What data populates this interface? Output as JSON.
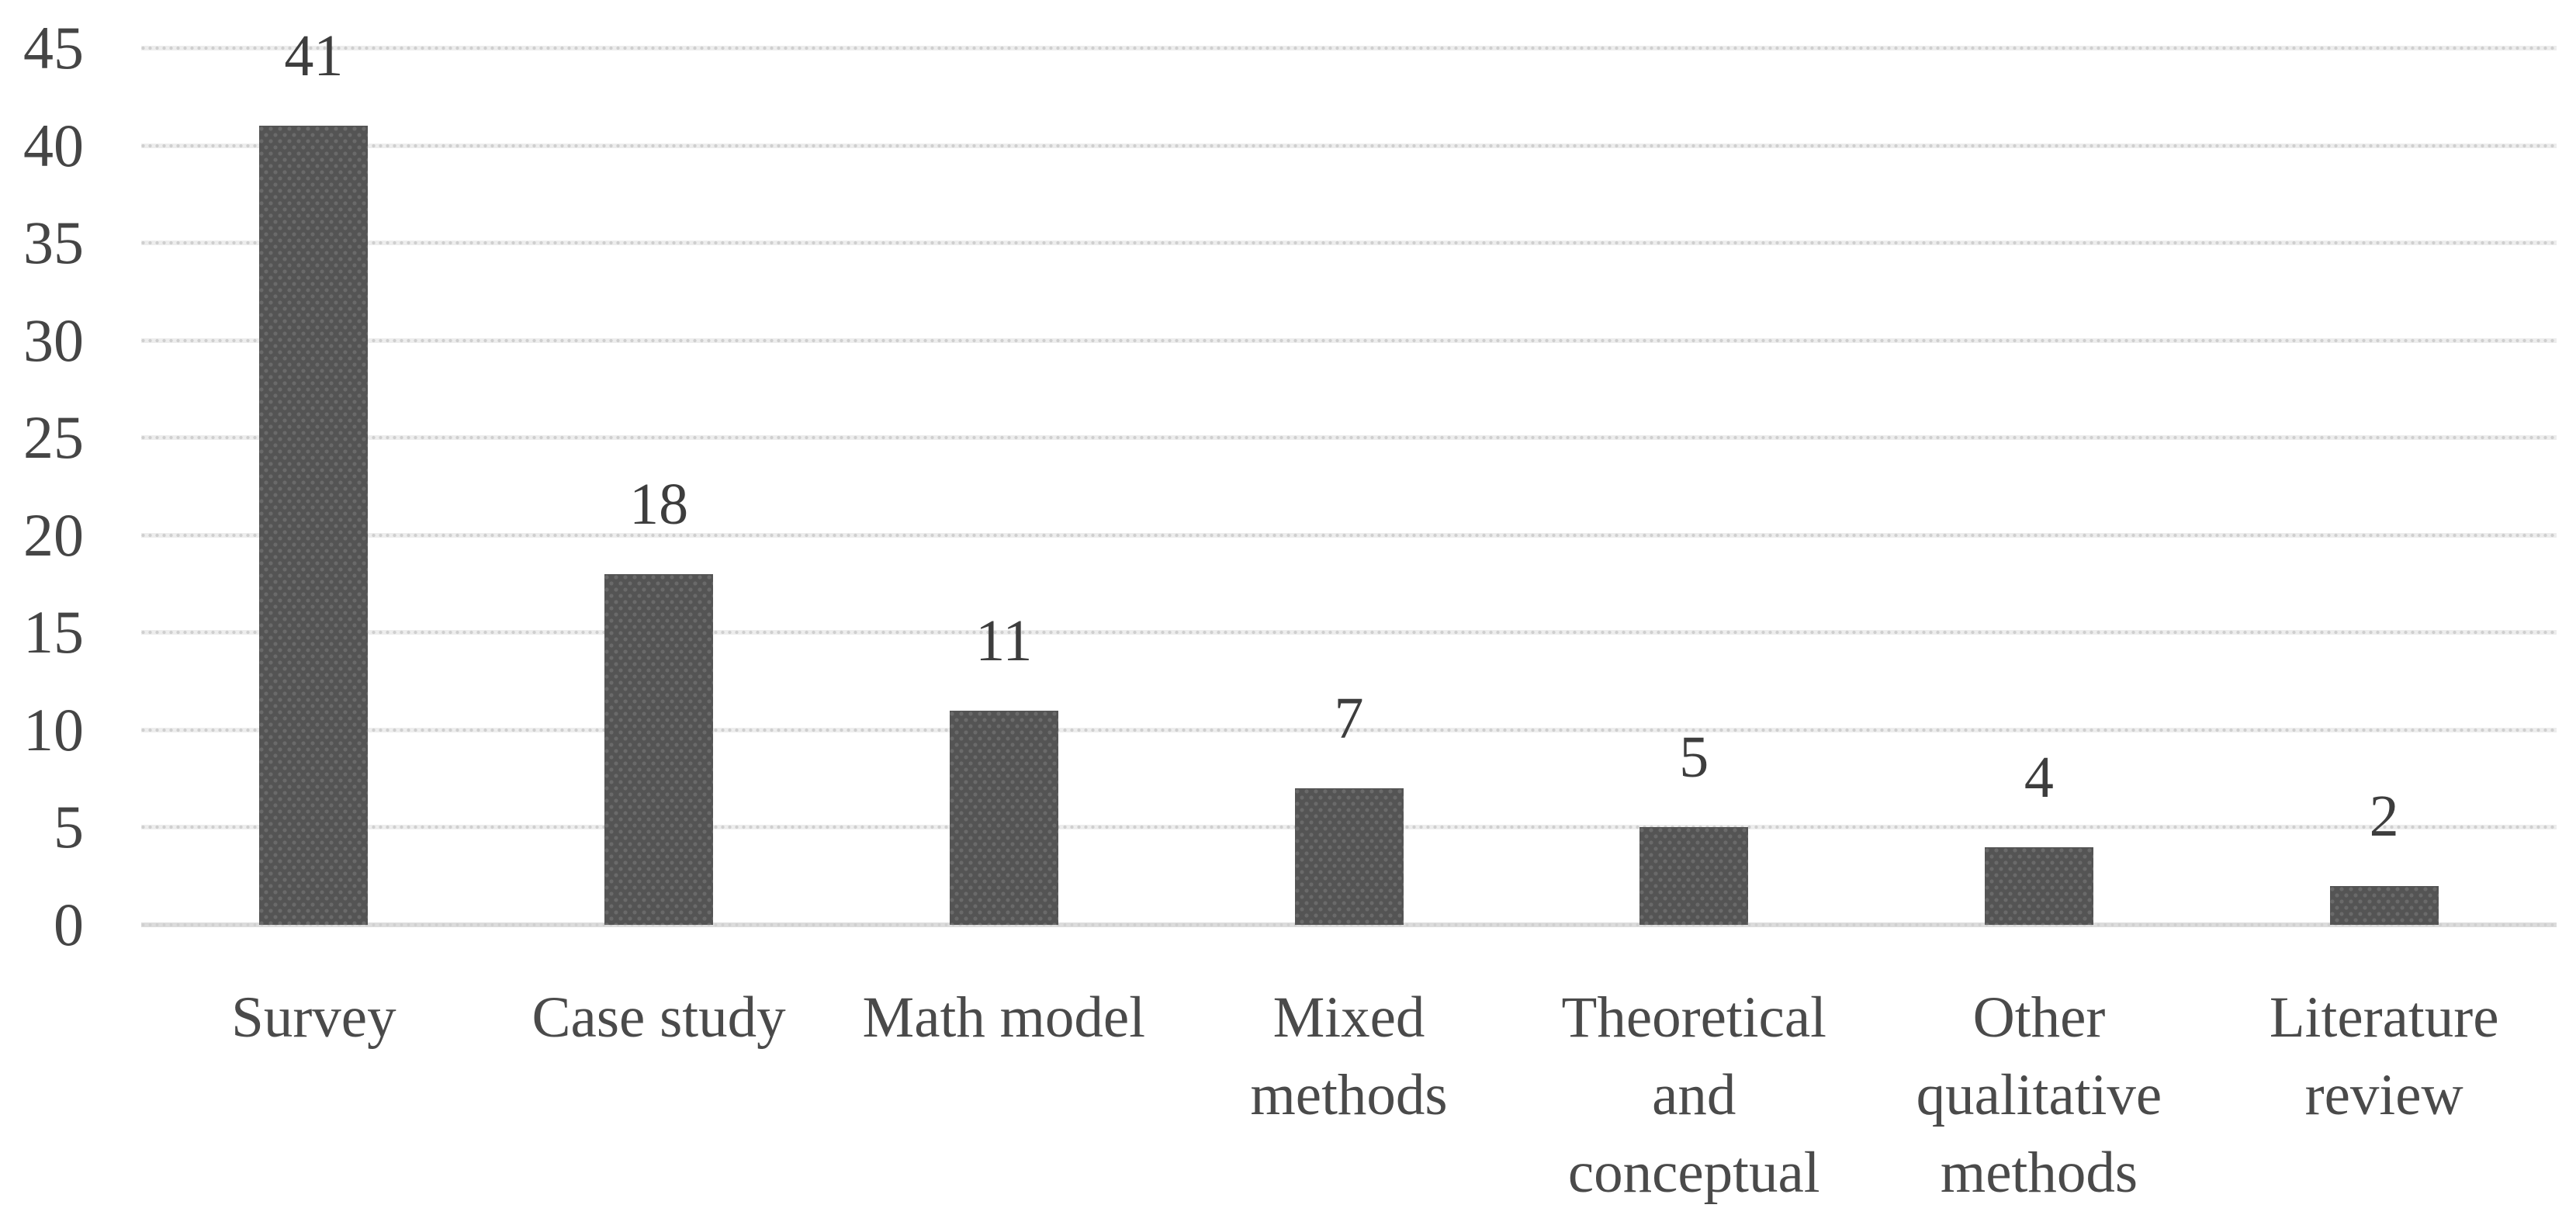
{
  "chart_data": {
    "type": "bar",
    "title": "",
    "xlabel": "",
    "ylabel": "",
    "categories": [
      "Survey",
      "Case study",
      "Math model",
      "Mixed\nmethods",
      "Theoretical\nand\nconceptual",
      "Other\nqualitative\nmethods",
      "Literature\nreview"
    ],
    "values": [
      41,
      18,
      11,
      7,
      5,
      4,
      2
    ],
    "yticks": [
      0,
      5,
      10,
      15,
      20,
      25,
      30,
      35,
      40,
      45
    ],
    "ylim": [
      0,
      45
    ],
    "grid": "horizontal-dotted",
    "legend_position": "none",
    "value_labels_shown": true,
    "colors": {
      "bar_fill": "#545454",
      "bar_dot_pattern": "#6a6a6a",
      "gridline": "#ededed",
      "gridline_dot": "#cfcfcf",
      "axis_tick_text": "#454545",
      "value_label_text": "#3d3d3d",
      "category_label_text": "#4a4a4a",
      "background": "#ffffff"
    }
  }
}
